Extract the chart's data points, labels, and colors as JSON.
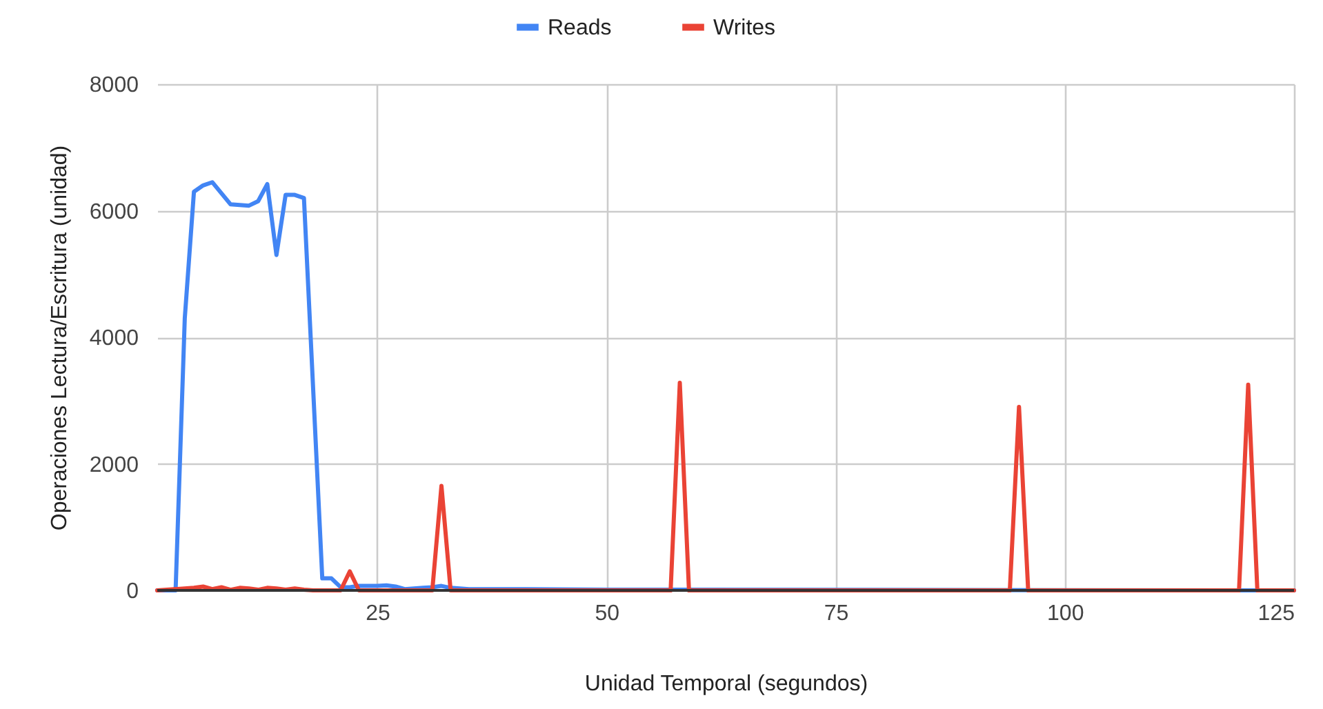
{
  "chart_data": {
    "type": "line",
    "xlabel": "Unidad Temporal (segundos)",
    "ylabel": "Operaciones Lectura/Escritura (unidad)",
    "xlim": [
      1,
      125
    ],
    "xticks": [
      25,
      50,
      75,
      100,
      125
    ],
    "ylim": [
      0,
      8000
    ],
    "yticks": [
      0,
      2000,
      4000,
      6000,
      8000
    ],
    "grid": true,
    "legend": "top",
    "marker": "none",
    "line_style": "solid",
    "series": [
      {
        "name": "Reads",
        "color": "#4285f4",
        "x": [
          1,
          3,
          4,
          5,
          6,
          7,
          9,
          11,
          12,
          13,
          14,
          15,
          16,
          17,
          19,
          20,
          21,
          22,
          23,
          25,
          26,
          27,
          28,
          30,
          31,
          32,
          33,
          35,
          40,
          50,
          60,
          125
        ],
        "values": [
          0,
          0,
          4300,
          6300,
          6400,
          6450,
          6100,
          6080,
          6150,
          6420,
          5300,
          6250,
          6250,
          6200,
          190,
          190,
          50,
          50,
          70,
          70,
          80,
          60,
          20,
          40,
          50,
          70,
          40,
          20,
          20,
          10,
          10,
          0
        ]
      },
      {
        "name": "Writes",
        "color": "#ea4335",
        "x": [
          1,
          5,
          6,
          7,
          8,
          9,
          10,
          11,
          12,
          13,
          14,
          15,
          16,
          17,
          18,
          21,
          22,
          23,
          31,
          32,
          33,
          57,
          58,
          59,
          94,
          95,
          96,
          119,
          120,
          121,
          125
        ],
        "values": [
          0,
          40,
          60,
          20,
          50,
          10,
          40,
          30,
          10,
          40,
          30,
          10,
          30,
          10,
          0,
          0,
          300,
          0,
          0,
          1650,
          0,
          0,
          3280,
          0,
          0,
          2900,
          0,
          0,
          3250,
          0,
          0
        ]
      }
    ]
  }
}
